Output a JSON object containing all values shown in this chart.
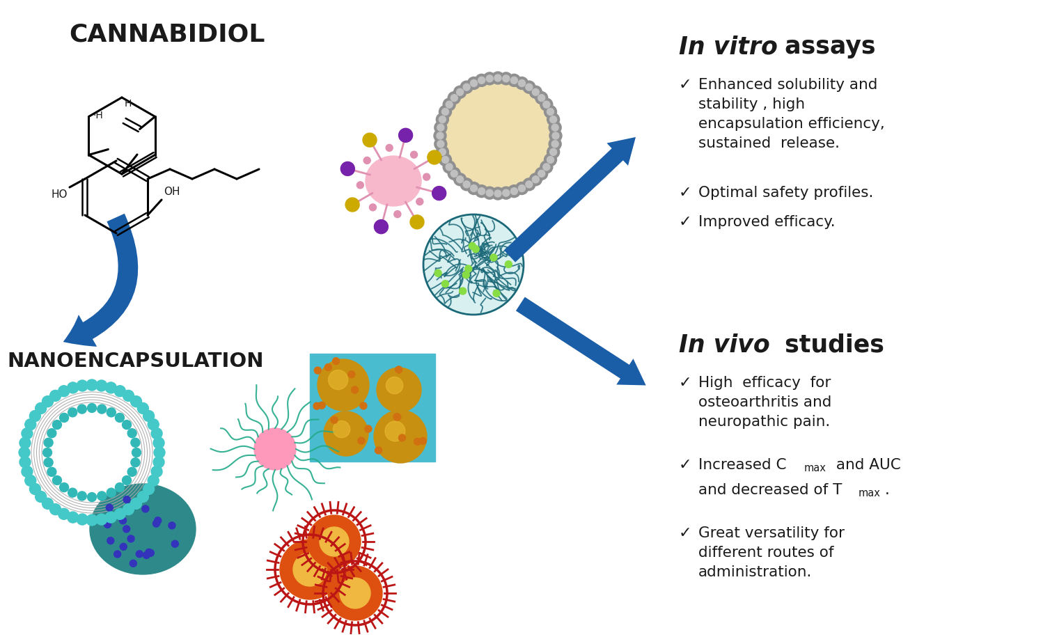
{
  "title": "CANNABIDIOL",
  "nanoencapsulation": "NANOENCAPSULATION",
  "vitro_title_italic": "In vitro",
  "vitro_title_normal": " assays",
  "vitro_bullet1": "Enhanced solubility and\nstability , high\nencapsulation efficiency,\nsustained  release.",
  "vitro_bullet2": "Optimal safety profiles.",
  "vitro_bullet3": "Improved efficacy.",
  "vivo_title_italic": "In vivo",
  "vivo_title_normal": " studies",
  "vivo_bullet1": "High  efficacy  for\nosteoarthritis and\nneuropathic pain.",
  "vivo_bullet3": "Great versatility for\ndifferent routes of\nadministration.",
  "arrow_color": "#1a5ea8",
  "text_color": "#1a1a1a",
  "bg_color": "#ffffff"
}
